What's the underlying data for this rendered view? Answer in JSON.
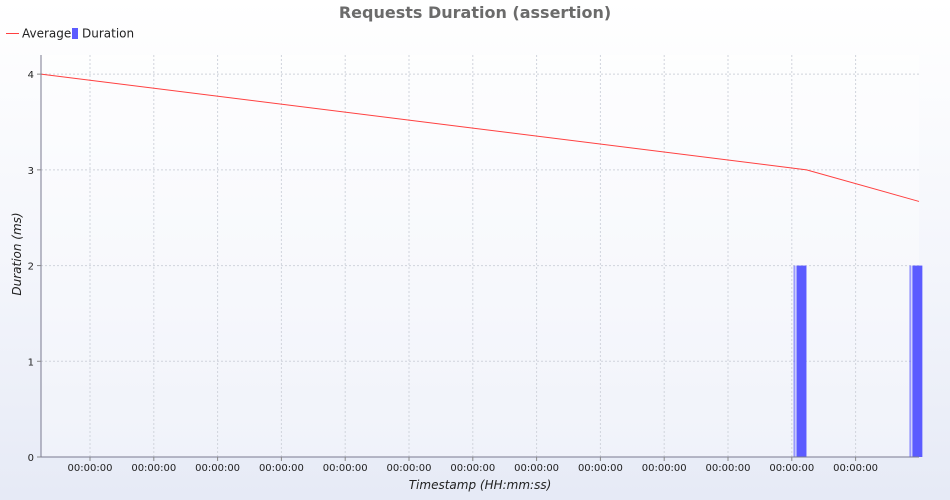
{
  "chart_data": {
    "type": "line",
    "title": "Requests Duration (assertion)",
    "xlabel": "Timestamp (HH:mm:ss)",
    "ylabel": "Duration (ms)",
    "x_tick_labels": [
      "00:00:00",
      "00:00:00",
      "00:00:00",
      "00:00:00",
      "00:00:00",
      "00:00:00",
      "00:00:00",
      "00:00:00",
      "00:00:00",
      "00:00:00",
      "00:00:00",
      "00:00:00",
      "00:00:00"
    ],
    "y_ticks": [
      0,
      1,
      2,
      3,
      4
    ],
    "ylim": [
      0,
      4.2
    ],
    "grid": true,
    "legend_position": "top-left",
    "series": [
      {
        "name": "Average",
        "kind": "line",
        "color": "#ff4040",
        "points": [
          {
            "t": 0.0,
            "y": 4.0
          },
          {
            "t": 0.872,
            "y": 3.0
          },
          {
            "t": 1.0,
            "y": 2.67
          }
        ]
      },
      {
        "name": "Duration",
        "kind": "bar",
        "color": "#5b5bff",
        "bars": [
          {
            "t": 0.865,
            "y": 2.0
          },
          {
            "t": 0.997,
            "y": 2.0
          }
        ]
      }
    ]
  }
}
